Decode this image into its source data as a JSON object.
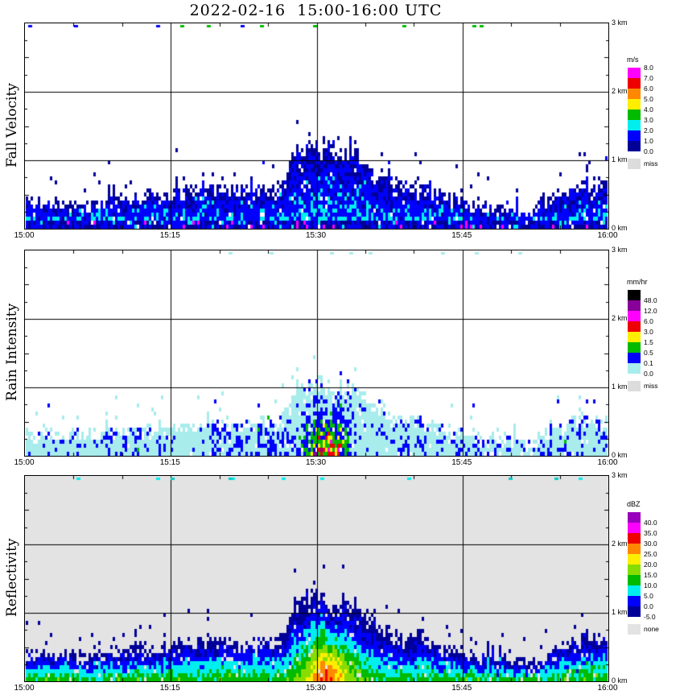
{
  "chart_data": {
    "type": "heatmap",
    "title": "2022-02-16  15:00-16:00 UTC",
    "date": "2022-02-16",
    "time_range_utc": [
      "15:00",
      "16:00"
    ],
    "x": {
      "ticks": [
        "15:00",
        "15:15",
        "15:30",
        "15:45",
        "16:00"
      ],
      "range_minutes": [
        0,
        60
      ],
      "gridlines_at": [
        "15:15",
        "15:30",
        "15:45"
      ],
      "minor_tick_minutes": 5
    },
    "y": {
      "ticks": [
        "0 km",
        "1 km",
        "2 km",
        "3 km"
      ],
      "range_km": [
        0,
        3
      ],
      "gridlines_at_km": [
        1,
        2
      ],
      "minor_tick_km": 0.25
    },
    "echo_top_sample_min": 2,
    "echo_top_km": [
      0.45,
      0.42,
      0.45,
      0.4,
      0.44,
      0.5,
      0.52,
      0.55,
      0.6,
      0.62,
      0.65,
      0.6,
      0.63,
      0.58,
      1.2,
      1.3,
      1.15,
      1.25,
      0.85,
      0.72,
      0.68,
      0.58,
      0.5,
      0.42,
      0.35,
      0.38,
      0.3,
      0.45,
      0.62,
      0.72,
      0.7
    ],
    "panels": [
      {
        "name": "fall-velocity",
        "ylabel": "Fall Velocity",
        "colorbar": {
          "unit": "m/s",
          "label_mode": "boundaries",
          "colors": [
            "#ff00ff",
            "#ee0000",
            "#ff8800",
            "#ffee00",
            "#00bb00",
            "#00eeee",
            "#0000ff",
            "#000099"
          ],
          "labels": [
            "8.0",
            "7.0",
            "6.0",
            "5.0",
            "4.0",
            "3.0",
            "2.0",
            "1.0",
            "0.0"
          ],
          "missing_label": "miss",
          "missing_color": "#dcdcdc"
        },
        "field": {
          "kind": "velocity",
          "seed": 11,
          "background": "#ffffff",
          "top_scale": 1.0,
          "thresholds": [
            1,
            2,
            3,
            4,
            5,
            6,
            7
          ],
          "params": {
            "v_base": 0.55,
            "v_slope": 1.7,
            "v_noise": 1.1,
            "fast_speck_prob": 0.05
          },
          "top_marks": {
            "count": 14,
            "colors": [
              "#00bb00",
              "#00bb00",
              "#0000ff"
            ]
          }
        }
      },
      {
        "name": "rain-intensity",
        "ylabel": "Rain Intensity",
        "colorbar": {
          "unit": "mm/hr",
          "label_mode": "bottoms",
          "colors": [
            "#000000",
            "#880099",
            "#ff00ff",
            "#ee0000",
            "#ffee00",
            "#00bb00",
            "#0000ff",
            "#a8ecec"
          ],
          "labels": [
            "48.0",
            "12.0",
            "6.0",
            "3.0",
            "1.5",
            "0.5",
            "0.1",
            "0.0"
          ],
          "missing_label": "miss",
          "missing_color": "#dcdcdc"
        },
        "field": {
          "kind": "rain",
          "seed": 22,
          "background": "#ffffff",
          "top_scale": 0.85,
          "thresholds": [
            0.1,
            0.5,
            1.5,
            3,
            6,
            12,
            48
          ],
          "core": {
            "t_min": 31,
            "t_sigma": 2.3,
            "h_sigma": 0.55
          },
          "params": {
            "log_base": -1.32,
            "log_noise": 0.95,
            "core_amp": 2.0
          },
          "top_marks": {
            "count": 9,
            "colors": [
              "#a8ecec"
            ]
          }
        }
      },
      {
        "name": "reflectivity",
        "ylabel": "Reflectivity",
        "colorbar": {
          "unit": "dBZ",
          "label_mode": "bottoms",
          "colors": [
            "#9900bb",
            "#ff00ff",
            "#ee0000",
            "#ff8800",
            "#ffee00",
            "#88dd00",
            "#00bb00",
            "#00eeee",
            "#0000ff",
            "#000099"
          ],
          "labels": [
            "40.0",
            "35.0",
            "30.0",
            "25.0",
            "20.0",
            "15.0",
            "10.0",
            "5.0",
            "0.0",
            "-5.0"
          ],
          "missing_label": "none",
          "missing_color": "#e3e3e3"
        },
        "field": {
          "kind": "reflect",
          "seed": 33,
          "background": "#e3e3e3",
          "top_scale": 1.0,
          "thresholds": [
            0,
            5,
            10,
            15,
            20,
            25,
            30,
            35,
            40
          ],
          "core": {
            "t_min": 31,
            "t_sigma": 2.3,
            "h_sigma": 0.6
          },
          "params": {
            "z_base": -5,
            "z_slope": 18,
            "z_noise": 4.5,
            "core_amp": 17
          },
          "top_marks": {
            "count": 11,
            "colors": [
              "#00cccc",
              "#00eeee"
            ]
          }
        }
      }
    ]
  }
}
